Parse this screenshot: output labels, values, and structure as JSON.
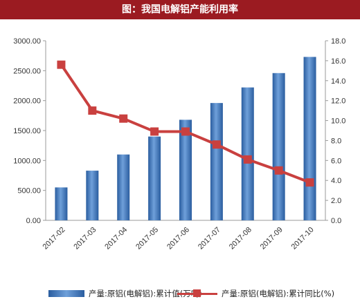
{
  "header": {
    "title": "图：我国电解铝产能利用率"
  },
  "chart_data": {
    "type": "bar",
    "title": "图：我国电解铝产能利用率",
    "categories": [
      "2017-02",
      "2017-03",
      "2017-04",
      "2017-05",
      "2017-06",
      "2017-07",
      "2017-08",
      "2017-09",
      "2017-10"
    ],
    "series": [
      {
        "name": "产量:原铝(电解铝):累计值(万吨)",
        "type": "bar",
        "axis": "left",
        "values": [
          550,
          830,
          1100,
          1400,
          1680,
          1960,
          2220,
          2460,
          2730
        ]
      },
      {
        "name": "产量:原铝(电解铝):累计同比(%)",
        "type": "line",
        "axis": "right",
        "values": [
          15.6,
          11.0,
          10.2,
          8.9,
          8.9,
          7.6,
          6.1,
          5.0,
          3.8
        ]
      }
    ],
    "left_axis": {
      "ylim": [
        0,
        3000
      ],
      "ticks": [
        "0.00",
        "500.00",
        "1000.00",
        "1500.00",
        "2000.00",
        "2500.00",
        "3000.00"
      ]
    },
    "right_axis": {
      "ylim": [
        0,
        18
      ],
      "ticks": [
        "0.0",
        "2.0",
        "4.0",
        "6.0",
        "8.0",
        "10.0",
        "12.0",
        "14.0",
        "16.0",
        "18.0"
      ]
    },
    "bar_color": "#3f7cc4",
    "line_color": "#c9403f",
    "legend_position": "bottom",
    "grid": false
  }
}
